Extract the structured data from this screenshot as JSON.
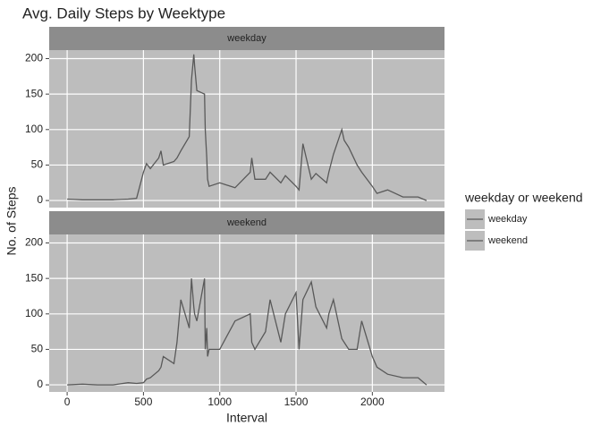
{
  "chart_data": {
    "type": "line",
    "title": "Avg. Daily Steps by Weektype",
    "xlabel": "Interval",
    "ylabel": "No. of Steps",
    "legend_title": "weekday or weekend",
    "x": [
      0,
      100,
      200,
      300,
      400,
      455,
      500,
      520,
      545,
      600,
      615,
      630,
      700,
      720,
      745,
      800,
      815,
      830,
      835,
      850,
      900,
      905,
      915,
      920,
      930,
      1000,
      1100,
      1200,
      1210,
      1230,
      1300,
      1330,
      1400,
      1430,
      1500,
      1520,
      1545,
      1600,
      1630,
      1700,
      1715,
      1745,
      1800,
      1815,
      1845,
      1900,
      1930,
      2000,
      2030,
      2100,
      2200,
      2300,
      2355
    ],
    "series": [
      {
        "name": "weekday",
        "color": "#595959",
        "values": [
          2,
          1,
          1,
          1,
          2,
          3,
          40,
          52,
          45,
          60,
          70,
          50,
          55,
          60,
          70,
          90,
          170,
          206,
          190,
          155,
          150,
          100,
          60,
          30,
          20,
          25,
          18,
          40,
          60,
          30,
          30,
          40,
          25,
          35,
          20,
          15,
          80,
          30,
          38,
          25,
          40,
          65,
          100,
          85,
          75,
          50,
          40,
          20,
          10,
          15,
          5,
          5,
          0
        ]
      },
      {
        "name": "weekend",
        "color": "#595959",
        "values": [
          0,
          1,
          0,
          0,
          3,
          2,
          3,
          8,
          10,
          20,
          25,
          40,
          30,
          60,
          120,
          80,
          150,
          110,
          100,
          90,
          150,
          50,
          80,
          40,
          50,
          50,
          90,
          100,
          60,
          50,
          75,
          120,
          60,
          100,
          130,
          50,
          120,
          145,
          110,
          80,
          100,
          120,
          65,
          60,
          50,
          50,
          90,
          40,
          25,
          15,
          10,
          10,
          0
        ]
      }
    ],
    "xlim": [
      -117.75,
      2472.75
    ],
    "xticks": [
      0,
      500,
      1000,
      1500,
      2000
    ],
    "ylim": [
      -10,
      212
    ],
    "yticks": [
      0,
      50,
      100,
      150,
      200
    ],
    "grid": true
  }
}
